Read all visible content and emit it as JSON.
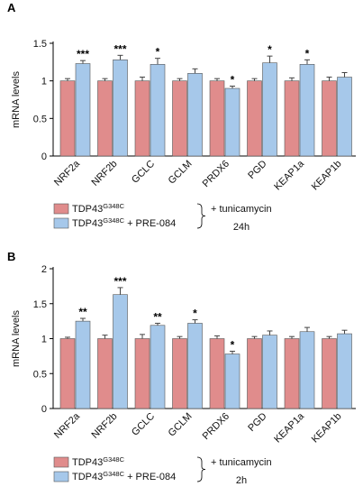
{
  "colors": {
    "series1": "#e08c8c",
    "series2": "#a6c8ea",
    "errorbar": "#444444",
    "border": "#555555"
  },
  "chart_data": [
    {
      "panel": "A",
      "type": "bar",
      "ylabel": "mRNA levels",
      "ylim": [
        0,
        1.5
      ],
      "yticks": [
        "0",
        "0.5",
        "1",
        "1.5"
      ],
      "categories": [
        "NRF2a",
        "NRF2b",
        "GCLC",
        "GCLM",
        "PRDX6",
        "PGD",
        "KEAP1a",
        "KEAP1b"
      ],
      "series": [
        {
          "values": [
            1.0,
            1.0,
            1.0,
            1.0,
            1.0,
            1.0,
            1.0,
            1.0
          ],
          "errors": [
            0.03,
            0.03,
            0.05,
            0.03,
            0.03,
            0.03,
            0.04,
            0.05
          ]
        },
        {
          "values": [
            1.23,
            1.28,
            1.22,
            1.1,
            0.9,
            1.24,
            1.22,
            1.05
          ],
          "errors": [
            0.04,
            0.06,
            0.08,
            0.06,
            0.03,
            0.09,
            0.06,
            0.06
          ]
        }
      ],
      "significance": [
        "***",
        "***",
        "*",
        "",
        "*",
        "*",
        "*",
        ""
      ],
      "legend": {
        "items": [
          {
            "base": "TDP43",
            "sup": "G348C",
            "suffix": ""
          },
          {
            "base": "TDP43",
            "sup": "G348C",
            "suffix": " + PRE-084"
          }
        ],
        "treatment": "+ tunicamycin",
        "time": "24h"
      }
    },
    {
      "panel": "B",
      "type": "bar",
      "ylabel": "mRNA levels",
      "ylim": [
        0,
        2
      ],
      "yticks": [
        "0",
        "0.5",
        "1",
        "1.5",
        "2"
      ],
      "categories": [
        "NRF2a",
        "NRF2b",
        "GCLC",
        "GCLM",
        "PRDX6",
        "PGD",
        "KEAP1a",
        "KEAP1b"
      ],
      "series": [
        {
          "values": [
            1.0,
            1.0,
            1.0,
            1.0,
            1.0,
            1.0,
            1.0,
            1.0
          ],
          "errors": [
            0.02,
            0.05,
            0.06,
            0.03,
            0.04,
            0.03,
            0.03,
            0.03
          ]
        },
        {
          "values": [
            1.25,
            1.63,
            1.19,
            1.22,
            0.78,
            1.05,
            1.1,
            1.07
          ],
          "errors": [
            0.04,
            0.1,
            0.03,
            0.05,
            0.04,
            0.06,
            0.06,
            0.05
          ]
        }
      ],
      "significance": [
        "**",
        "***",
        "**",
        "*",
        "*",
        "",
        "",
        ""
      ],
      "legend": {
        "items": [
          {
            "base": "TDP43",
            "sup": "G348C",
            "suffix": ""
          },
          {
            "base": "TDP43",
            "sup": "G348C",
            "suffix": " + PRE-084"
          }
        ],
        "treatment": "+ tunicamycin",
        "time": "2h"
      }
    }
  ]
}
